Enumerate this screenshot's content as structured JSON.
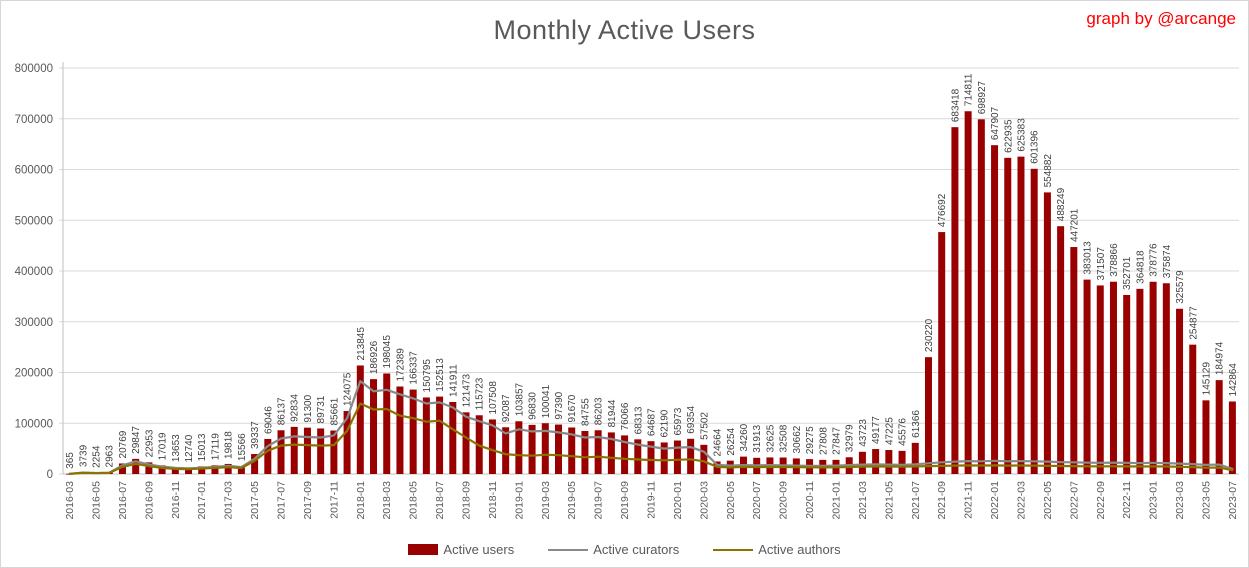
{
  "header": {
    "credit": "graph by @arcange",
    "credit_color": "#ff0000"
  },
  "chart_data": {
    "type": "bar",
    "title": "Monthly Active Users",
    "xlabel": "",
    "ylabel": "",
    "y_axis": {
      "min": 0,
      "max": 800000,
      "step": 100000
    },
    "x_tick_every": 2,
    "grid": true,
    "legend_position": "bottom",
    "categories": [
      "2016-03",
      "2016-04",
      "2016-05",
      "2016-06",
      "2016-07",
      "2016-08",
      "2016-09",
      "2016-10",
      "2016-11",
      "2016-12",
      "2017-01",
      "2017-02",
      "2017-03",
      "2017-04",
      "2017-05",
      "2017-06",
      "2017-07",
      "2017-08",
      "2017-09",
      "2017-10",
      "2017-11",
      "2017-12",
      "2018-01",
      "2018-02",
      "2018-03",
      "2018-04",
      "2018-05",
      "2018-06",
      "2018-07",
      "2018-08",
      "2018-09",
      "2018-10",
      "2018-11",
      "2018-12",
      "2019-01",
      "2019-02",
      "2019-03",
      "2019-04",
      "2019-05",
      "2019-06",
      "2019-07",
      "2019-08",
      "2019-09",
      "2019-10",
      "2019-11",
      "2019-12",
      "2020-01",
      "2020-02",
      "2020-03",
      "2020-04",
      "2020-05",
      "2020-06",
      "2020-07",
      "2020-08",
      "2020-09",
      "2020-10",
      "2020-11",
      "2020-12",
      "2021-01",
      "2021-02",
      "2021-03",
      "2021-04",
      "2021-05",
      "2021-06",
      "2021-07",
      "2021-08",
      "2021-09",
      "2021-10",
      "2021-11",
      "2021-12",
      "2022-01",
      "2022-02",
      "2022-03",
      "2022-04",
      "2022-05",
      "2022-06",
      "2022-07",
      "2022-08",
      "2022-09",
      "2022-10",
      "2022-11",
      "2022-12",
      "2023-01",
      "2023-02",
      "2023-03",
      "2023-04",
      "2023-05",
      "2023-06",
      "2023-07"
    ],
    "series": [
      {
        "name": "Active users",
        "type": "bar",
        "color": "#990000",
        "data_labels": true,
        "values": [
          365,
          3739,
          2254,
          2963,
          20769,
          29847,
          22953,
          17019,
          13653,
          12740,
          15013,
          17119,
          19818,
          15566,
          39337,
          69046,
          86137,
          92834,
          91300,
          89731,
          85661,
          124075,
          213845,
          186926,
          198045,
          172389,
          166337,
          150795,
          152513,
          141911,
          121473,
          115723,
          107508,
          92087,
          103857,
          96830,
          100041,
          97390,
          91670,
          84755,
          86203,
          81944,
          76066,
          68313,
          64687,
          62190,
          65973,
          69354,
          57502,
          24664,
          26254,
          34260,
          31913,
          32625,
          32508,
          30662,
          29275,
          27808,
          27847,
          32979,
          43723,
          49177,
          47225,
          45576,
          61366,
          230220,
          476692,
          683418,
          714811,
          698927,
          647907,
          622935,
          625383,
          601396,
          554882,
          488249,
          447201,
          383013,
          371507,
          378866,
          352701,
          364818,
          378776,
          375874,
          325579,
          254877,
          145129,
          184974,
          142864
        ]
      },
      {
        "name": "Active curators",
        "type": "line",
        "color": "#898989",
        "data_labels": false,
        "values_estimated": true,
        "values": [
          300,
          2800,
          1900,
          2600,
          17000,
          25000,
          19000,
          14500,
          12000,
          11000,
          12500,
          14000,
          16000,
          13500,
          30000,
          55000,
          70000,
          74000,
          73000,
          72000,
          76000,
          110000,
          183000,
          163000,
          166000,
          157000,
          149000,
          139000,
          141000,
          131000,
          113000,
          104000,
          96000,
          80000,
          88000,
          84000,
          85000,
          82000,
          78000,
          72000,
          73000,
          69000,
          63000,
          58000,
          54000,
          50000,
          52000,
          53000,
          44000,
          18000,
          16500,
          17500,
          17000,
          17500,
          17000,
          16500,
          16000,
          16000,
          16500,
          17500,
          18500,
          19000,
          18500,
          18000,
          19000,
          21000,
          23000,
          24500,
          25500,
          25000,
          26000,
          25000,
          25500,
          25000,
          24500,
          23500,
          23000,
          22500,
          22000,
          22500,
          22000,
          21500,
          22000,
          21500,
          20500,
          19500,
          18000,
          18500,
          10000
        ]
      },
      {
        "name": "Active authors",
        "type": "line",
        "color": "#8a7300",
        "data_labels": false,
        "values_estimated": true,
        "values": [
          200,
          2200,
          1500,
          2100,
          14000,
          20000,
          15500,
          12000,
          10000,
          9500,
          10800,
          12000,
          13500,
          11800,
          26000,
          46000,
          56000,
          58000,
          57000,
          56000,
          57000,
          85000,
          139000,
          127000,
          128000,
          115000,
          110000,
          103000,
          105000,
          88000,
          72000,
          56000,
          47000,
          39000,
          37000,
          36000,
          38000,
          37000,
          35000,
          33000,
          34000,
          32000,
          30000,
          28500,
          27500,
          27000,
          28000,
          29000,
          25000,
          14000,
          13000,
          14000,
          13500,
          14000,
          13800,
          13500,
          13200,
          13000,
          13200,
          13800,
          14500,
          15000,
          14800,
          14500,
          15000,
          15500,
          16000,
          16500,
          17000,
          16800,
          17000,
          16500,
          16800,
          16500,
          16200,
          15800,
          15500,
          15200,
          15000,
          15200,
          15000,
          14800,
          15000,
          14800,
          14200,
          13500,
          12500,
          12800,
          7500
        ]
      }
    ]
  }
}
